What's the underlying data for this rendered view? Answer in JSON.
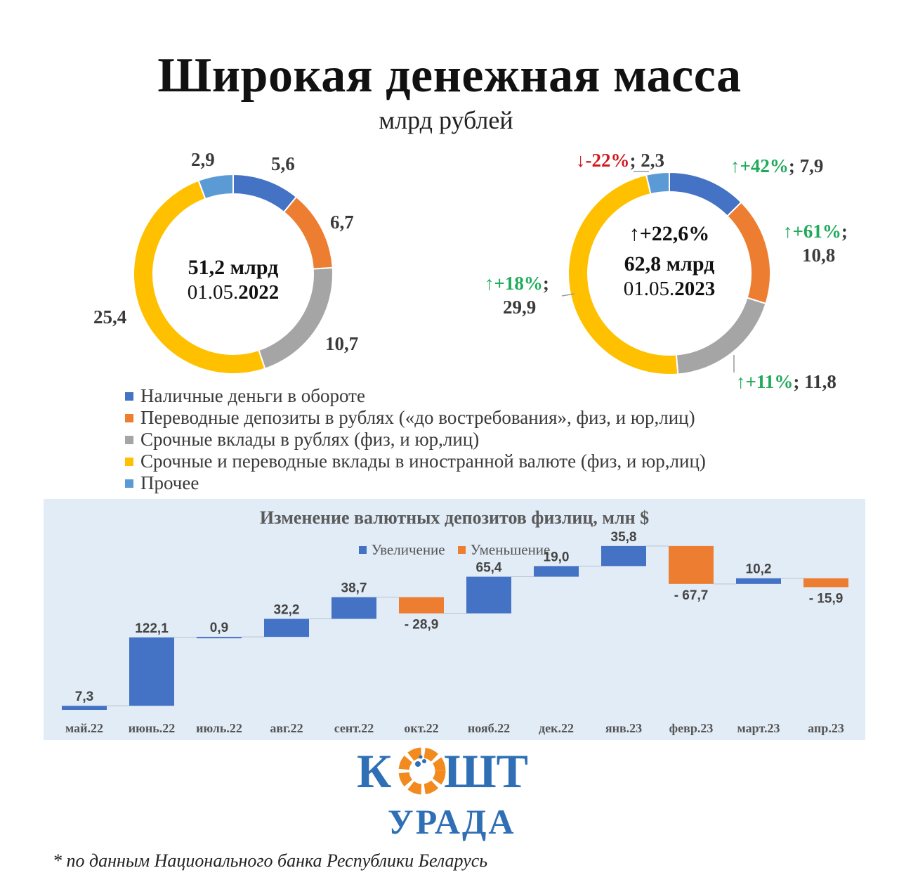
{
  "title": "Широкая денежная масса",
  "subtitle": "млрд рублей",
  "colors": {
    "cash": "#4472c4",
    "transfer": "#ed7d31",
    "term": "#a5a5a5",
    "foreign": "#ffc000",
    "other": "#5b9bd5",
    "increase": "#4472c4",
    "decrease": "#ed7d31",
    "positive_change": "#1faa5a",
    "negative_change": "#d0191f"
  },
  "chart_data": [
    {
      "type": "pie",
      "variant": "donut",
      "center_value": "51,2 млрд",
      "center_date_prefix": "01.05.",
      "center_date_year": "2022",
      "slices": [
        {
          "category": "Наличные деньги в обороте",
          "value": 5.6,
          "label": "5,6"
        },
        {
          "category": "Переводные депозиты в рублях («до востребования», физ, и юр,лиц)",
          "value": 6.7,
          "label": "6,7"
        },
        {
          "category": "Срочные вклады в рублях (физ, и юр,лиц)",
          "value": 10.7,
          "label": "10,7"
        },
        {
          "category": "Срочные и переводные вклады в иностранной валюте (физ, и юр,лиц)",
          "value": 25.4,
          "label": "25,4"
        },
        {
          "category": "Прочее",
          "value": 2.9,
          "label": "2,9"
        }
      ]
    },
    {
      "type": "pie",
      "variant": "donut",
      "center_change": "↑+22,6%",
      "center_value": "62,8 млрд",
      "center_date_prefix": "01.05.",
      "center_date_year": "2023",
      "slices": [
        {
          "category": "Наличные деньги в обороте",
          "value": 7.9,
          "label": "7,9",
          "change": "↑+42%"
        },
        {
          "category": "Переводные депозиты в рублях («до востребования», физ, и юр,лиц)",
          "value": 10.8,
          "label": "10,8",
          "change": "↑+61%"
        },
        {
          "category": "Срочные вклады в рублях (физ, и юр,лиц)",
          "value": 11.8,
          "label": "11,8",
          "change": "↑+11%"
        },
        {
          "category": "Срочные и переводные вклады в иностранной валюте (физ, и юр,лиц)",
          "value": 29.9,
          "label": "29,9",
          "change": "↑+18%"
        },
        {
          "category": "Прочее",
          "value": 2.3,
          "label": "2,3",
          "change": "↓-22%"
        }
      ]
    },
    {
      "type": "bar",
      "variant": "waterfall",
      "title": "Изменение валютных депозитов физлиц, млн $",
      "legend": [
        "Увеличение",
        "Уменьшение"
      ],
      "legend_position": "top",
      "categories": [
        "май.22",
        "июнь.22",
        "июль.22",
        "авг.22",
        "сент.22",
        "окт.22",
        "нояб.22",
        "дек.22",
        "янв.23",
        "февр.23",
        "март.23",
        "апр.23"
      ],
      "values": [
        7.3,
        122.1,
        0.9,
        32.2,
        38.7,
        -28.9,
        65.4,
        19.0,
        35.8,
        -67.7,
        10.2,
        -15.9
      ],
      "value_labels": [
        "7,3",
        "122,1",
        "0,9",
        "32,2",
        "38,7",
        "- 28,9",
        "65,4",
        "19,0",
        "35,8",
        "- 67,7",
        "10,2",
        "- 15,9"
      ],
      "grid": false
    }
  ],
  "legend": [
    {
      "label": "Наличные деньги в обороте",
      "color": "#4472c4"
    },
    {
      "label": "Переводные депозиты в рублях («до востребования», физ, и юр,лиц)",
      "color": "#ed7d31"
    },
    {
      "label": "Срочные вклады в рублях (физ, и юр,лиц)",
      "color": "#a5a5a5"
    },
    {
      "label": "Срочные и переводные вклады в иностранной валюте (физ, и юр,лиц)",
      "color": "#ffc000"
    },
    {
      "label": "Прочее",
      "color": "#5b9bd5"
    }
  ],
  "logo": {
    "line1": "КОШТ",
    "line2": "УРАДА"
  },
  "footnote": "* по данным Национального банка Республики Беларусь"
}
